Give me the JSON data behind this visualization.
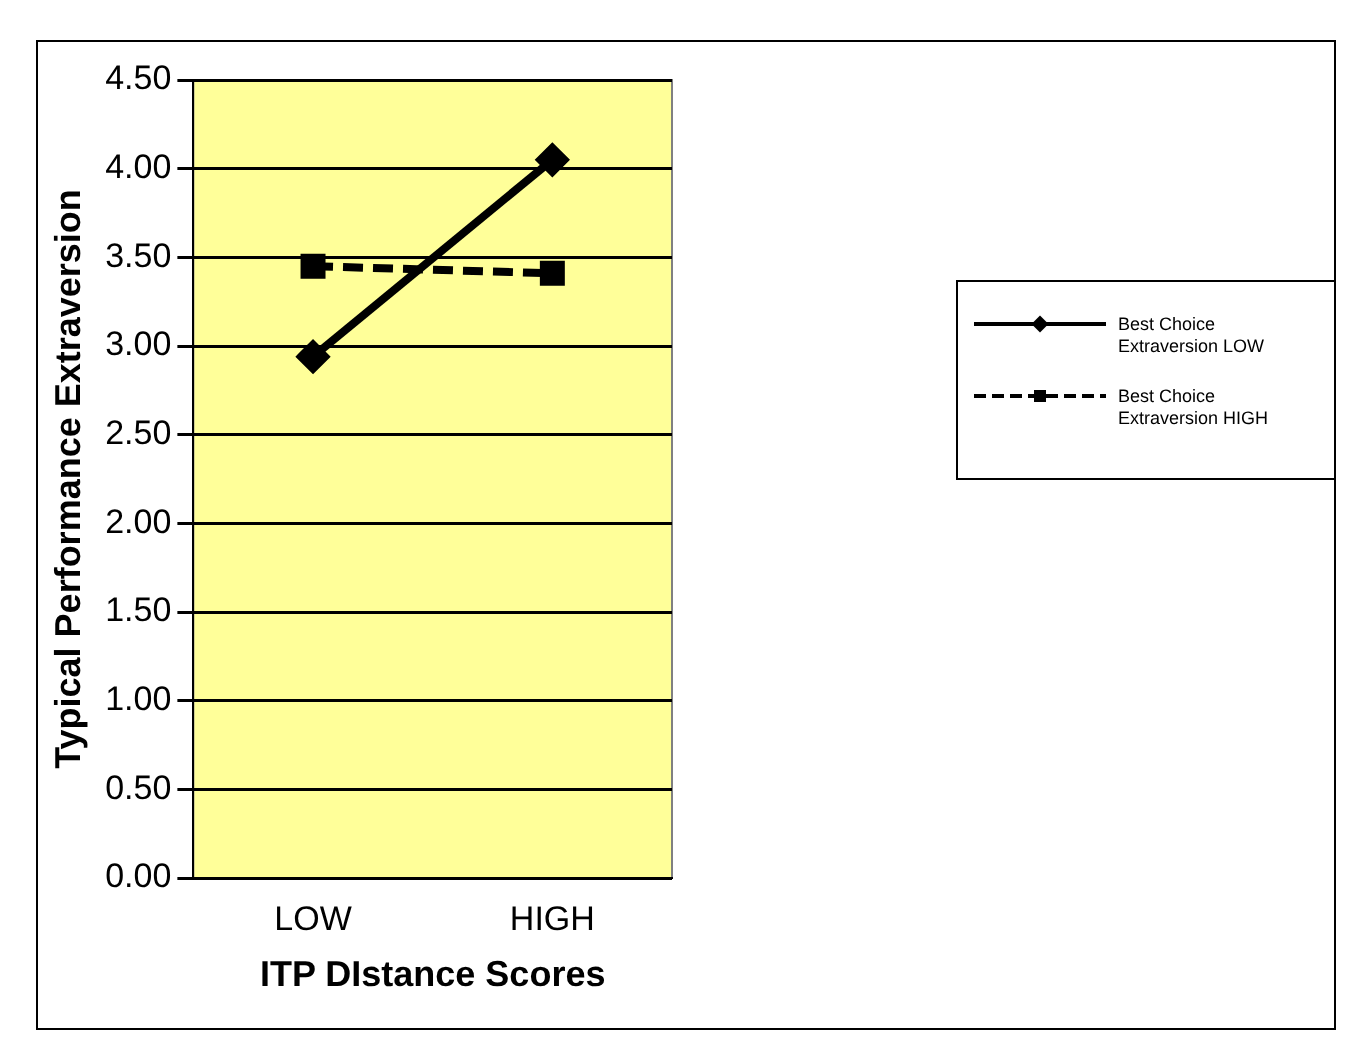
{
  "chart_data": {
    "type": "line",
    "xlabel": "ITP DIstance Scores",
    "ylabel": "Typical Performance Extraversion",
    "categories": [
      "LOW",
      "HIGH"
    ],
    "series": [
      {
        "name": "Best Choice Extraversion LOW",
        "color": "#000000",
        "values": [
          2.94,
          4.05
        ],
        "marker": "diamond",
        "line_style": "solid"
      },
      {
        "name": "Best Choice Extraversion HIGH",
        "color": "#000000",
        "values": [
          3.45,
          3.41
        ],
        "marker": "square",
        "line_style": "dashed"
      }
    ],
    "ylim": [
      0,
      4.5
    ],
    "yticks": [
      {
        "value": 0,
        "label": "0.00"
      },
      {
        "value": 0.5,
        "label": "0.50"
      },
      {
        "value": 1,
        "label": "1.00"
      },
      {
        "value": 1.5,
        "label": "1.50"
      },
      {
        "value": 2,
        "label": "2.00"
      },
      {
        "value": 2.5,
        "label": "2.50"
      },
      {
        "value": 3,
        "label": "3.00"
      },
      {
        "value": 3.5,
        "label": "3.50"
      },
      {
        "value": 4,
        "label": "4.00"
      },
      {
        "value": 4.5,
        "label": "4.50"
      }
    ],
    "grid": "y",
    "legend": "right"
  }
}
